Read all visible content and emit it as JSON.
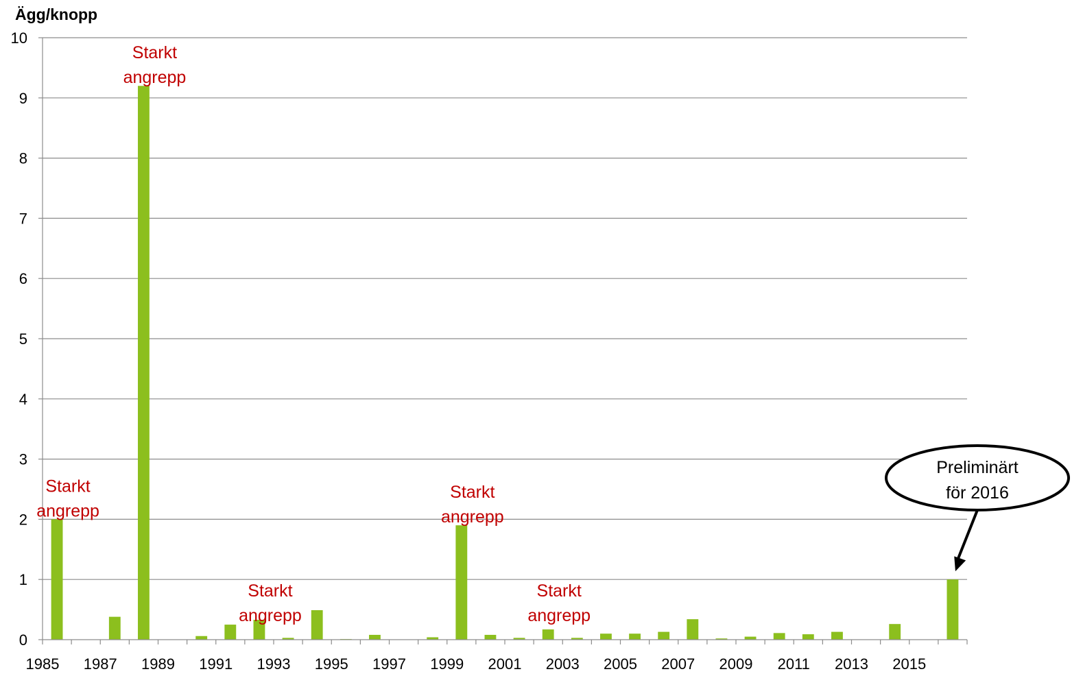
{
  "chart_data": {
    "type": "bar",
    "title": "",
    "xlabel": "",
    "ylabel": "Ägg/knopp",
    "ylim": [
      0,
      10
    ],
    "yticks": [
      "0",
      "1",
      "2",
      "3",
      "4",
      "5",
      "6",
      "7",
      "8",
      "9",
      "10"
    ],
    "xtick_labels": [
      "1985",
      "1987",
      "1989",
      "1991",
      "1993",
      "1995",
      "1997",
      "1999",
      "2001",
      "2003",
      "2005",
      "2007",
      "2009",
      "2011",
      "2013",
      "2015"
    ],
    "categories": [
      "1985",
      "1986",
      "1987",
      "1988",
      "1989",
      "1990",
      "1991",
      "1992",
      "1993",
      "1994",
      "1995",
      "1996",
      "1997",
      "1998",
      "1999",
      "2000",
      "2001",
      "2002",
      "2003",
      "2004",
      "2005",
      "2006",
      "2007",
      "2008",
      "2009",
      "2010",
      "2011",
      "2012",
      "2013",
      "2014",
      "2015",
      "2016"
    ],
    "values": [
      2.0,
      0,
      0.38,
      9.2,
      0,
      0.06,
      0.25,
      0.33,
      0.03,
      0.49,
      0.01,
      0.08,
      0,
      0.04,
      1.9,
      0.08,
      0.03,
      0.17,
      0.03,
      0.1,
      0.1,
      0.13,
      0.34,
      0.02,
      0.05,
      0.11,
      0.09,
      0.13,
      0,
      0.26,
      0,
      1.0
    ],
    "bar_color": "#8cbf1e",
    "grid": true,
    "legend": "none",
    "annotations": [
      {
        "line1": "Starkt",
        "line2": "angrepp",
        "year": "1988",
        "color": "#c00000"
      },
      {
        "line1": "Starkt",
        "line2": "angrepp",
        "year": "1985",
        "color": "#c00000"
      },
      {
        "line1": "Starkt",
        "line2": "angrepp",
        "year": "1999",
        "color": "#c00000"
      },
      {
        "line1": "Starkt",
        "line2": "angrepp",
        "year": "1992",
        "color": "#c00000"
      },
      {
        "line1": "Starkt",
        "line2": "angrepp",
        "year": "2002",
        "color": "#c00000"
      }
    ],
    "callout": {
      "line1": "Preliminärt",
      "line2": "för 2016",
      "year": "2016"
    }
  }
}
